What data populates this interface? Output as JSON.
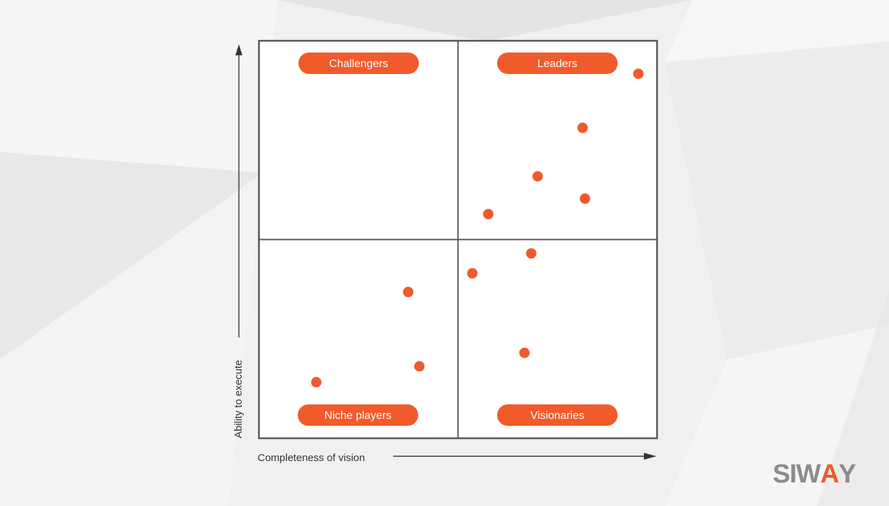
{
  "chart_data": {
    "type": "scatter",
    "xlabel": "Completeness of vision",
    "ylabel": "Ability to execute",
    "xlim": [
      0,
      100
    ],
    "ylim": [
      0,
      100
    ],
    "quadrants": {
      "top_left": "Challengers",
      "top_right": "Leaders",
      "bottom_left": "Niche players",
      "bottom_right": "Visionaries"
    },
    "points": [
      {
        "x": 95.3,
        "y": 91.7
      },
      {
        "x": 81.3,
        "y": 78.1
      },
      {
        "x": 70.0,
        "y": 65.9
      },
      {
        "x": 81.9,
        "y": 60.3
      },
      {
        "x": 57.6,
        "y": 56.4
      },
      {
        "x": 68.4,
        "y": 46.5
      },
      {
        "x": 53.6,
        "y": 41.5
      },
      {
        "x": 37.5,
        "y": 36.8
      },
      {
        "x": 66.7,
        "y": 21.5
      },
      {
        "x": 40.3,
        "y": 18.1
      },
      {
        "x": 14.4,
        "y": 14.1
      }
    ],
    "point_color": "#f15a2b",
    "grid": true
  },
  "brand": {
    "logo_text_part1": "SIW",
    "logo_text_accent": "A",
    "logo_text_part2": "Y"
  },
  "colors": {
    "accent": "#f15a2b",
    "frame": "#555555",
    "plot_bg": "#ffffff",
    "logo_gray": "#8c8c8c"
  }
}
